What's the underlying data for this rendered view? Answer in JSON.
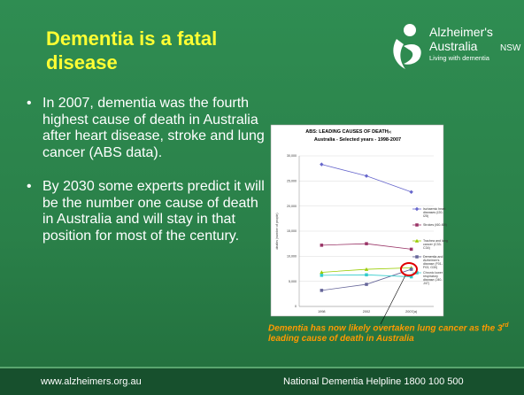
{
  "slide": {
    "title": "Dementia is a fatal disease",
    "logo": {
      "line1": "Alzheimer's",
      "line2": "Australia",
      "line2_suffix": "NSW",
      "tagline": "Living with dementia"
    },
    "bullets": [
      "In 2007, dementia was the fourth highest cause of death in Australia after heart disease, stroke and lung cancer (ABS data).",
      "By 2030 some experts predict it will be the number one cause of death in Australia and will stay in that position for most of the century."
    ],
    "caption": {
      "before": "Dementia has now likely overtaken lung cancer as the 3",
      "sup": "rd",
      "after": " leading cause of death in Australia"
    },
    "footer": {
      "left": "www.alzheimers.org.au",
      "right": "National Dementia Helpline 1800 100 500"
    }
  },
  "chart_data": {
    "type": "line",
    "title": "ABS: LEADING CAUSES OF DEATH",
    "title_note": "(a)",
    "subtitle": "Australia - Selected years - 1998-2007",
    "y_label": "deaths (number of people)",
    "categories": [
      "1998",
      "2002",
      "2007(a)"
    ],
    "ylim": [
      0,
      30000
    ],
    "yticks": [
      0,
      {
        "value": 5000,
        "label": "5,000"
      },
      {
        "value": 10000,
        "label": "10,000"
      },
      {
        "value": 15000,
        "label": "15,000"
      },
      {
        "value": 20000,
        "label": "20,000"
      },
      {
        "value": 25000,
        "label": "25,000"
      },
      {
        "value": 30000,
        "label": "30,000"
      }
    ],
    "grid": true,
    "series": [
      {
        "name": "Ischaemic heart diseases (I20-I25)",
        "color": "#6666cc",
        "marker": "diamond",
        "values": [
          28300,
          26000,
          22800
        ]
      },
      {
        "name": "Strokes (I60-I69)",
        "color": "#993366",
        "marker": "square",
        "values": [
          12200,
          12500,
          11400
        ]
      },
      {
        "name": "Trachea and lung cancer (C33-C34)",
        "color": "#99cc00",
        "marker": "triangle",
        "values": [
          6800,
          7400,
          7700
        ]
      },
      {
        "name": "Dementia and Alzheimer's disease (F01-F03, G30)",
        "color": "#666699",
        "marker": "square",
        "values": [
          3200,
          4400,
          7400
        ]
      },
      {
        "name": "Chronic lower respiratory disease (J40-J47)",
        "color": "#33cccc",
        "marker": "square",
        "values": [
          6200,
          6300,
          5900
        ]
      }
    ]
  }
}
